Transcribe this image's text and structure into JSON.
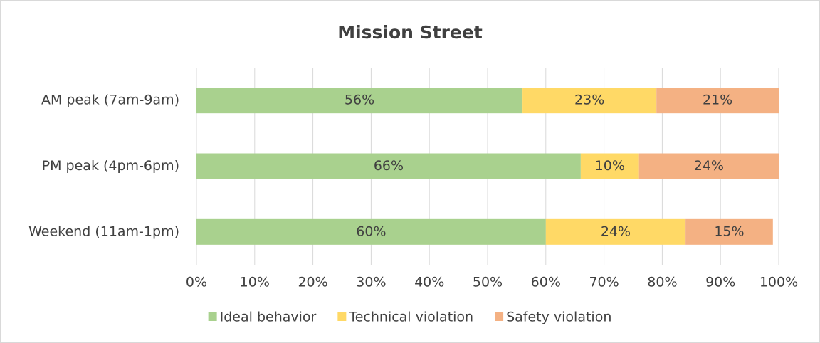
{
  "chart_data": {
    "type": "bar",
    "orientation": "horizontal",
    "stacked": true,
    "title": "Mission Street",
    "categories": [
      "AM peak (7am-9am)",
      "PM peak (4pm-6pm)",
      "Weekend (11am-1pm)"
    ],
    "series": [
      {
        "name": "Ideal behavior",
        "color": "#a9d18e",
        "values": [
          56,
          66,
          60
        ],
        "value_labels": [
          "56%",
          "66%",
          "60%"
        ]
      },
      {
        "name": "Technical violation",
        "color": "#ffd966",
        "values": [
          23,
          10,
          24
        ],
        "value_labels": [
          "23%",
          "10%",
          "24%"
        ]
      },
      {
        "name": "Safety violation",
        "color": "#f4b183",
        "values": [
          21,
          24,
          15
        ],
        "value_labels": [
          "21%",
          "24%",
          "15%"
        ]
      }
    ],
    "xlim": [
      0,
      100
    ],
    "xticks": [
      {
        "value": 0,
        "label": "0%"
      },
      {
        "value": 10,
        "label": "10%"
      },
      {
        "value": 20,
        "label": "20%"
      },
      {
        "value": 30,
        "label": "30%"
      },
      {
        "value": 40,
        "label": "40%"
      },
      {
        "value": 50,
        "label": "50%"
      },
      {
        "value": 60,
        "label": "60%"
      },
      {
        "value": 70,
        "label": "70%"
      },
      {
        "value": 80,
        "label": "80%"
      },
      {
        "value": 90,
        "label": "90%"
      },
      {
        "value": 100,
        "label": "100%"
      }
    ],
    "grid": true,
    "legend": "bottom"
  }
}
